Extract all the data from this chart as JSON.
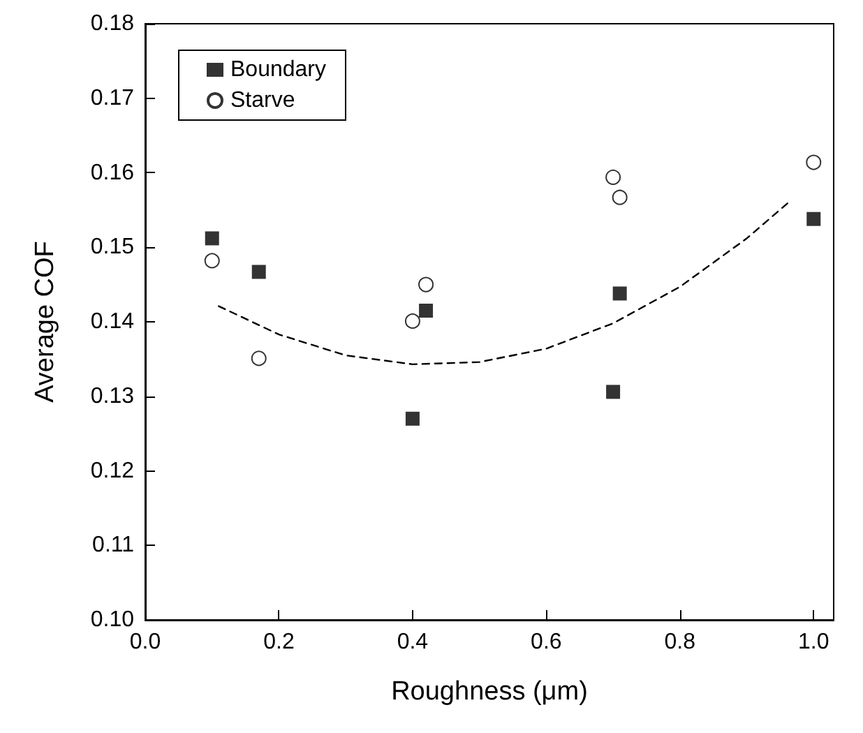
{
  "chart_data": {
    "type": "scatter",
    "xlabel": "Roughness (μm)",
    "ylabel": "Average COF",
    "xlim": [
      0,
      1.03
    ],
    "ylim": [
      0.1,
      0.18
    ],
    "xticks": [
      {
        "value": 0,
        "label": "0.0"
      },
      {
        "value": 0.2,
        "label": "0.2"
      },
      {
        "value": 0.4,
        "label": "0.4"
      },
      {
        "value": 0.6,
        "label": "0.6"
      },
      {
        "value": 0.8,
        "label": "0.8"
      },
      {
        "value": 1,
        "label": "1.0"
      }
    ],
    "yticks": [
      {
        "value": 0.1,
        "label": "0.10"
      },
      {
        "value": 0.11,
        "label": "0.11"
      },
      {
        "value": 0.12,
        "label": "0.12"
      },
      {
        "value": 0.13,
        "label": "0.13"
      },
      {
        "value": 0.14,
        "label": "0.14"
      },
      {
        "value": 0.15,
        "label": "0.15"
      },
      {
        "value": 0.16,
        "label": "0.16"
      },
      {
        "value": 0.17,
        "label": "0.17"
      },
      {
        "value": 0.18,
        "label": "0.18"
      }
    ],
    "x": [
      0.1,
      0.17,
      0.4,
      0.42,
      0.7,
      0.71,
      1.0
    ],
    "series": [
      {
        "name": "Boundary",
        "color": "#000000",
        "marker": "square",
        "values": [
          0.1512,
          0.1467,
          0.127,
          0.1415,
          0.1306,
          0.1438,
          0.1538
        ]
      },
      {
        "name": "Starve",
        "color": "#000000",
        "marker": "circle",
        "values": [
          0.1482,
          0.1351,
          0.1401,
          0.145,
          0.1594,
          0.1567,
          0.1614
        ]
      },
      {
        "type": "line",
        "color": "#000000",
        "line_style": "dashed",
        "x": [
          0.11,
          0.2,
          0.3,
          0.4,
          0.5,
          0.6,
          0.7,
          0.8,
          0.9,
          0.966
        ],
        "values": [
          0.1421,
          0.1383,
          0.1355,
          0.1343,
          0.1346,
          0.1364,
          0.1398,
          0.1447,
          0.1512,
          0.1563
        ]
      }
    ],
    "legend": "top left",
    "grid": false
  }
}
